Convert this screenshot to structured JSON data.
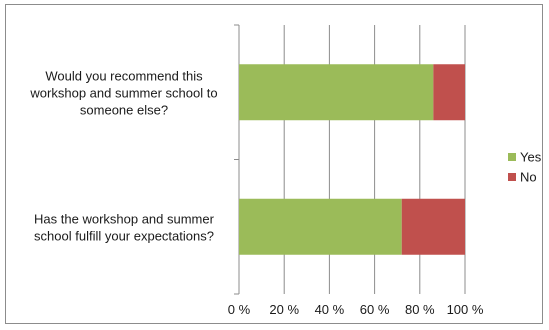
{
  "chart_data": {
    "type": "bar",
    "orientation": "horizontal",
    "stacked": "percent",
    "title": "",
    "xlabel": "",
    "ylabel": "",
    "xlim": [
      0,
      100
    ],
    "x_ticks": [
      "0 %",
      "20 %",
      "40 %",
      "60 %",
      "80 %",
      "100 %"
    ],
    "x_tick_values": [
      0,
      20,
      40,
      60,
      80,
      100
    ],
    "categories": [
      "Would you recommend this workshop and summer school to someone else?",
      "Has the workshop and summer school fulfill your expectations?"
    ],
    "category_label_lines": [
      [
        "Would you recommend this",
        "workshop and summer school to",
        "someone else?"
      ],
      [
        "Has the workshop and summer",
        "school fulfill your expectations?"
      ]
    ],
    "series": [
      {
        "name": "Yes",
        "color": "#9bbb59",
        "values": [
          86,
          72
        ]
      },
      {
        "name": "No",
        "color": "#c0504d",
        "values": [
          14,
          28
        ]
      }
    ],
    "grid": "vertical",
    "legend": "right"
  }
}
